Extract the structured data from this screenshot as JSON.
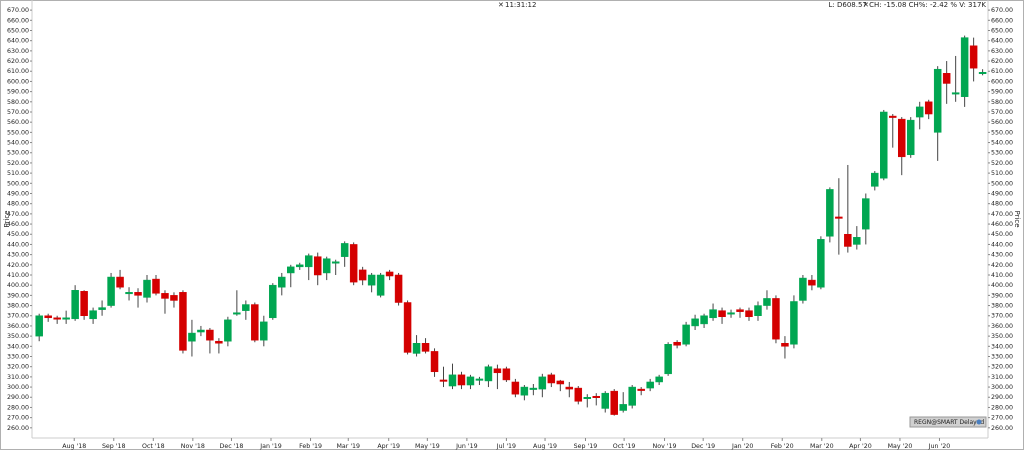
{
  "chart_data": {
    "type": "candlestick",
    "header_time": "11:31:12",
    "header_info": "L: D608.57 CH: -15.08 CH%: -2.42 % V: 317K",
    "ylabel": "Price",
    "badge": "REGN@SMART Delayed",
    "up_color": "#00a651",
    "down_color": "#d40000",
    "open": [
      350,
      370,
      368,
      367,
      367,
      394,
      367,
      376,
      380,
      408,
      392,
      393,
      388,
      406,
      392,
      390,
      393,
      345,
      354,
      356,
      345,
      345,
      372,
      375,
      381,
      346,
      368,
      398,
      412,
      418,
      418,
      428,
      412,
      423,
      428,
      440,
      415,
      400,
      390,
      413,
      410,
      383,
      333,
      343,
      335,
      307,
      301,
      312,
      302,
      307,
      306,
      318,
      318,
      305,
      292,
      298,
      298,
      312,
      306,
      300,
      299,
      289,
      291,
      279,
      296,
      277,
      282,
      298,
      299,
      305,
      313,
      344,
      342,
      360,
      362,
      368,
      375,
      372,
      376,
      375,
      370,
      380,
      387,
      343,
      342,
      385,
      405,
      398,
      448,
      467,
      450,
      440,
      455,
      497,
      505,
      566,
      563,
      528,
      565,
      580,
      550,
      608,
      588,
      585,
      635,
      609
    ],
    "high": [
      372,
      372,
      370,
      375,
      400,
      395,
      378,
      385,
      412,
      415,
      398,
      397,
      410,
      410,
      395,
      393,
      395,
      366,
      360,
      358,
      348,
      369,
      395,
      385,
      383,
      370,
      402,
      412,
      420,
      422,
      431,
      432,
      428,
      425,
      443,
      442,
      418,
      412,
      412,
      415,
      412,
      385,
      351,
      348,
      338,
      320,
      323,
      315,
      312,
      310,
      322,
      322,
      320,
      308,
      302,
      303,
      313,
      314,
      307,
      305,
      301,
      293,
      294,
      296,
      298,
      295,
      302,
      300,
      308,
      312,
      344,
      346,
      364,
      371,
      372,
      382,
      378,
      376,
      378,
      378,
      384,
      395,
      390,
      350,
      390,
      410,
      410,
      448,
      496,
      505,
      518,
      458,
      490,
      512,
      572,
      568,
      565,
      565,
      580,
      582,
      615,
      620,
      625,
      645,
      643,
      612
    ],
    "low": [
      345,
      364,
      362,
      362,
      365,
      366,
      362,
      370,
      378,
      396,
      385,
      378,
      383,
      390,
      372,
      378,
      333,
      330,
      350,
      333,
      333,
      340,
      370,
      366,
      344,
      340,
      366,
      390,
      398,
      415,
      405,
      400,
      405,
      410,
      418,
      400,
      400,
      393,
      388,
      405,
      380,
      332,
      330,
      333,
      310,
      300,
      298,
      298,
      298,
      302,
      300,
      298,
      305,
      290,
      287,
      292,
      290,
      300,
      296,
      290,
      283,
      280,
      282,
      275,
      272,
      275,
      279,
      292,
      296,
      302,
      311,
      338,
      340,
      356,
      358,
      365,
      362,
      368,
      368,
      365,
      365,
      376,
      343,
      328,
      338,
      382,
      395,
      396,
      442,
      430,
      432,
      435,
      440,
      493,
      503,
      535,
      508,
      525,
      553,
      563,
      522,
      578,
      580,
      575,
      600,
      606
    ],
    "close": [
      370,
      368,
      367,
      368,
      395,
      370,
      375,
      378,
      408,
      398,
      393,
      390,
      405,
      392,
      387,
      385,
      336,
      353,
      356,
      346,
      343,
      366,
      373,
      381,
      346,
      364,
      400,
      408,
      418,
      420,
      429,
      410,
      426,
      423,
      441,
      403,
      405,
      410,
      410,
      409,
      383,
      334,
      343,
      335,
      315,
      306,
      312,
      302,
      310,
      308,
      320,
      314,
      307,
      293,
      300,
      299,
      310,
      304,
      303,
      298,
      286,
      290,
      290,
      294,
      273,
      283,
      300,
      297,
      305,
      310,
      342,
      341,
      361,
      367,
      370,
      376,
      369,
      373,
      374,
      369,
      380,
      387,
      347,
      340,
      384,
      407,
      400,
      445,
      494,
      466,
      438,
      447,
      485,
      510,
      570,
      565,
      526,
      562,
      575,
      568,
      612,
      598,
      589,
      643,
      613,
      609
    ],
    "xlim": [
      -0.8,
      105.6
    ],
    "xticks": [
      {
        "value": 3.9,
        "label": "Aug '18"
      },
      {
        "value": 8.3,
        "label": "Sep '18"
      },
      {
        "value": 12.7,
        "label": "Oct '18"
      },
      {
        "value": 17.1,
        "label": "Nov '18"
      },
      {
        "value": 21.4,
        "label": "Dec '18"
      },
      {
        "value": 25.8,
        "label": "Jan '19"
      },
      {
        "value": 30.2,
        "label": "Feb '19"
      },
      {
        "value": 34.4,
        "label": "Mar '19"
      },
      {
        "value": 38.9,
        "label": "Apr '19"
      },
      {
        "value": 43.2,
        "label": "May '19"
      },
      {
        "value": 47.6,
        "label": "Jun '19"
      },
      {
        "value": 52,
        "label": "Jul '19"
      },
      {
        "value": 56.3,
        "label": "Aug '19"
      },
      {
        "value": 60.8,
        "label": "Sep '19"
      },
      {
        "value": 65.1,
        "label": "Oct '19"
      },
      {
        "value": 69.6,
        "label": "Nov '19"
      },
      {
        "value": 73.9,
        "label": "Dec '19"
      },
      {
        "value": 78.3,
        "label": "Jan '20"
      },
      {
        "value": 82.7,
        "label": "Feb '20"
      },
      {
        "value": 87.1,
        "label": "Mar '20"
      },
      {
        "value": 91.4,
        "label": "Apr '20"
      },
      {
        "value": 95.8,
        "label": "May '20"
      },
      {
        "value": 100.2,
        "label": "Jun '20"
      }
    ],
    "ylim": [
      250,
      676
    ],
    "yticks": [
      {
        "value": 260,
        "label": "260.00"
      },
      {
        "value": 270,
        "label": "270.00"
      },
      {
        "value": 280,
        "label": "280.00"
      },
      {
        "value": 290,
        "label": "290.00"
      },
      {
        "value": 300,
        "label": "300.00"
      },
      {
        "value": 310,
        "label": "310.00"
      },
      {
        "value": 320,
        "label": "320.00"
      },
      {
        "value": 330,
        "label": "330.00"
      },
      {
        "value": 340,
        "label": "340.00"
      },
      {
        "value": 350,
        "label": "350.00"
      },
      {
        "value": 360,
        "label": "360.00"
      },
      {
        "value": 370,
        "label": "370.00"
      },
      {
        "value": 380,
        "label": "380.00"
      },
      {
        "value": 390,
        "label": "390.00"
      },
      {
        "value": 400,
        "label": "400.00"
      },
      {
        "value": 410,
        "label": "410.00"
      },
      {
        "value": 420,
        "label": "420.00"
      },
      {
        "value": 430,
        "label": "430.00"
      },
      {
        "value": 440,
        "label": "440.00"
      },
      {
        "value": 450,
        "label": "450.00"
      },
      {
        "value": 460,
        "label": "460.00"
      },
      {
        "value": 470,
        "label": "470.00"
      },
      {
        "value": 480,
        "label": "480.00"
      },
      {
        "value": 490,
        "label": "490.00"
      },
      {
        "value": 500,
        "label": "500.00"
      },
      {
        "value": 510,
        "label": "510.00"
      },
      {
        "value": 520,
        "label": "520.00"
      },
      {
        "value": 530,
        "label": "530.00"
      },
      {
        "value": 540,
        "label": "540.00"
      },
      {
        "value": 550,
        "label": "550.00"
      },
      {
        "value": 560,
        "label": "560.00"
      },
      {
        "value": 570,
        "label": "570.00"
      },
      {
        "value": 580,
        "label": "580.00"
      },
      {
        "value": 590,
        "label": "590.00"
      },
      {
        "value": 600,
        "label": "600.00"
      },
      {
        "value": 610,
        "label": "610.00"
      },
      {
        "value": 620,
        "label": "620.00"
      },
      {
        "value": 630,
        "label": "630.00"
      },
      {
        "value": 640,
        "label": "640.00"
      },
      {
        "value": 650,
        "label": "650.00"
      },
      {
        "value": 660,
        "label": "660.00"
      },
      {
        "value": 670,
        "label": "670.00"
      }
    ]
  }
}
